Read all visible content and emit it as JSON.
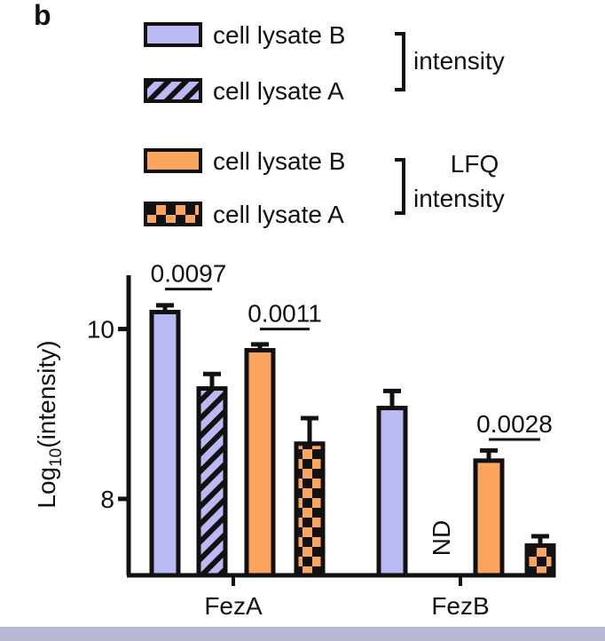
{
  "panel_label": "b",
  "legend": {
    "groups": [
      {
        "label_lines": [
          "intensity"
        ],
        "entries": [
          {
            "label": "cell lysate B",
            "fill": "solid",
            "color": "#b9b9f4"
          },
          {
            "label": "cell lysate A",
            "fill": "stripes",
            "color": "#b9b9f4"
          }
        ]
      },
      {
        "label_lines": [
          "LFQ",
          "intensity"
        ],
        "entries": [
          {
            "label": "cell lysate B",
            "fill": "solid",
            "color": "#fba55e"
          },
          {
            "label": "cell lysate A",
            "fill": "checker",
            "color": "#fba55e"
          }
        ]
      }
    ]
  },
  "chart_data": {
    "type": "bar",
    "title": "",
    "ylabel_main": "Log",
    "ylabel_sub": "10",
    "ylabel_tail": "(intensity)",
    "ylim": [
      7.1,
      10.55
    ],
    "yticks": [
      {
        "value": 8,
        "label": "8"
      },
      {
        "value": 10,
        "label": "10"
      }
    ],
    "categories": [
      "FezA",
      "FezB"
    ],
    "series": [
      {
        "key": "intensity_B",
        "fill": "solid",
        "color": "#b9b9f4",
        "values": [
          10.2,
          9.07
        ],
        "errors": [
          0.08,
          0.2
        ]
      },
      {
        "key": "intensity_A",
        "fill": "stripes",
        "color": "#b9b9f4",
        "values": [
          9.3,
          null
        ],
        "errors": [
          0.17,
          null
        ]
      },
      {
        "key": "lfq_B",
        "fill": "solid",
        "color": "#fba55e",
        "values": [
          9.75,
          8.45
        ],
        "errors": [
          0.07,
          0.12
        ]
      },
      {
        "key": "lfq_A",
        "fill": "checker",
        "color": "#fba55e",
        "values": [
          8.65,
          7.45
        ],
        "errors": [
          0.3,
          0.11
        ]
      }
    ],
    "annotations": [
      {
        "text": "0.0097",
        "category": 0,
        "from_series": 0,
        "to_series": 1,
        "y_value": 10.47
      },
      {
        "text": "0.0011",
        "category": 0,
        "from_series": 2,
        "to_series": 3,
        "y_value": 10.0
      },
      {
        "text": "0.0028",
        "category": 1,
        "from_series": 2,
        "to_series": 3,
        "y_value": 8.7
      }
    ],
    "not_detected": [
      {
        "text": "ND",
        "category": 1,
        "series": 1
      }
    ]
  }
}
